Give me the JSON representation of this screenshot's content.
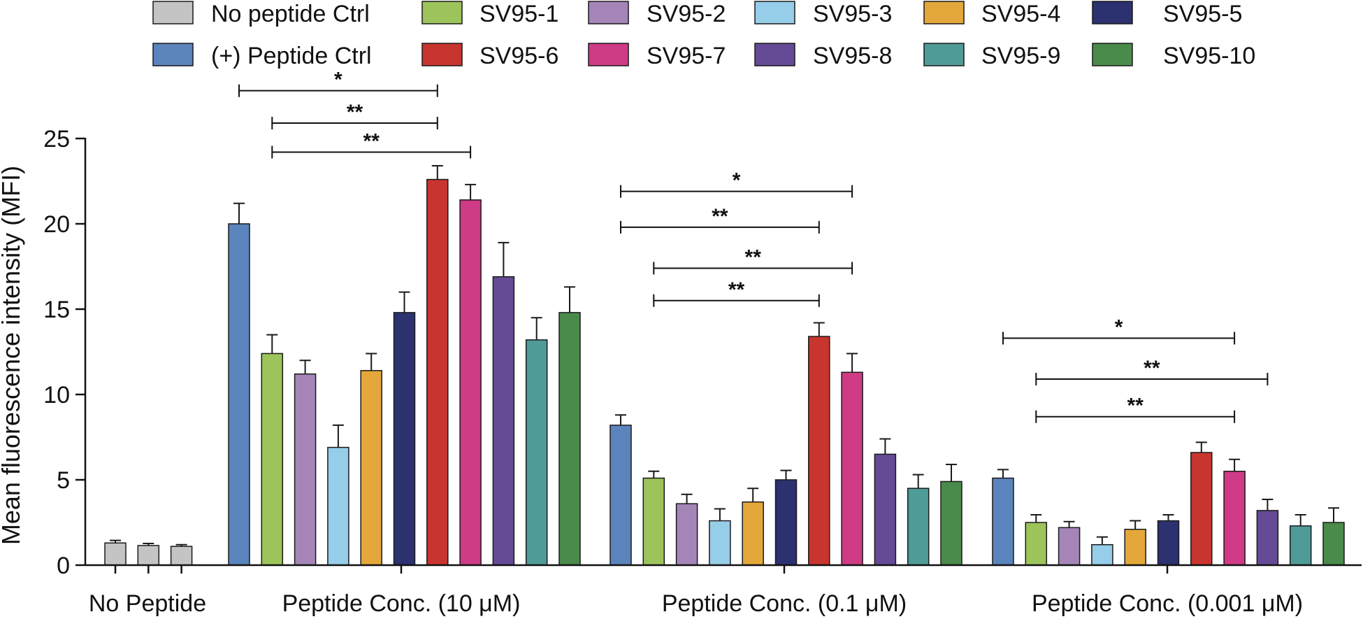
{
  "chart_data": {
    "type": "bar",
    "title": "",
    "xlabel": "",
    "ylabel": "Mean fluorescence intensity (MFI)",
    "ylim": [
      0,
      25
    ],
    "yticks": [
      0,
      5,
      10,
      15,
      20,
      25
    ],
    "legend_position": "top",
    "legend": [
      {
        "label": "No peptide Ctrl",
        "color": "#c4c4c4"
      },
      {
        "label": "SV95-1",
        "color": "#9cc45a"
      },
      {
        "label": "SV95-2",
        "color": "#a585b8"
      },
      {
        "label": "SV95-3",
        "color": "#96cde8"
      },
      {
        "label": "SV95-4",
        "color": "#e3a73b"
      },
      {
        "label": "SV95-5",
        "color": "#2c3170"
      },
      {
        "label": "(+) Peptide Ctrl",
        "color": "#5b84bc"
      },
      {
        "label": "SV95-6",
        "color": "#c8352e"
      },
      {
        "label": "SV95-7",
        "color": "#cf3b86"
      },
      {
        "label": "SV95-8",
        "color": "#654a96"
      },
      {
        "label": "SV95-9",
        "color": "#4f9b98"
      },
      {
        "label": "SV95-10",
        "color": "#4a8a4a"
      }
    ],
    "series_order": [
      "(+) Peptide Ctrl",
      "SV95-1",
      "SV95-2",
      "SV95-3",
      "SV95-4",
      "SV95-5",
      "SV95-6",
      "SV95-7",
      "SV95-8",
      "SV95-9",
      "SV95-10"
    ],
    "groups": [
      {
        "label": "No Peptide",
        "bars": [
          {
            "series": "No peptide Ctrl",
            "value": 1.3,
            "error": 0.15
          },
          {
            "series": "No peptide Ctrl",
            "value": 1.15,
            "error": 0.12
          },
          {
            "series": "No peptide Ctrl",
            "value": 1.1,
            "error": 0.1
          }
        ],
        "significance": []
      },
      {
        "label": "Peptide Conc. (10 μM)",
        "bars": [
          {
            "series": "(+) Peptide Ctrl",
            "value": 20.0,
            "error": 1.2
          },
          {
            "series": "SV95-1",
            "value": 12.4,
            "error": 1.1
          },
          {
            "series": "SV95-2",
            "value": 11.2,
            "error": 0.8
          },
          {
            "series": "SV95-3",
            "value": 6.9,
            "error": 1.3
          },
          {
            "series": "SV95-4",
            "value": 11.4,
            "error": 1.0
          },
          {
            "series": "SV95-5",
            "value": 14.8,
            "error": 1.2
          },
          {
            "series": "SV95-6",
            "value": 22.6,
            "error": 0.8
          },
          {
            "series": "SV95-7",
            "value": 21.4,
            "error": 0.9
          },
          {
            "series": "SV95-8",
            "value": 16.9,
            "error": 2.0
          },
          {
            "series": "SV95-9",
            "value": 13.2,
            "error": 1.3
          },
          {
            "series": "SV95-10",
            "value": 14.8,
            "error": 1.5
          }
        ],
        "significance": [
          {
            "from": 0,
            "to": 6,
            "y": 27.8,
            "label": "*"
          },
          {
            "from": 1,
            "to": 6,
            "y": 25.9,
            "label": "**"
          },
          {
            "from": 1,
            "to": 7,
            "y": 24.2,
            "label": "**"
          }
        ]
      },
      {
        "label": "Peptide Conc. (0.1 μM)",
        "bars": [
          {
            "series": "(+) Peptide Ctrl",
            "value": 8.2,
            "error": 0.6
          },
          {
            "series": "SV95-1",
            "value": 5.1,
            "error": 0.4
          },
          {
            "series": "SV95-2",
            "value": 3.6,
            "error": 0.55
          },
          {
            "series": "SV95-3",
            "value": 2.6,
            "error": 0.7
          },
          {
            "series": "SV95-4",
            "value": 3.7,
            "error": 0.8
          },
          {
            "series": "SV95-5",
            "value": 5.0,
            "error": 0.55
          },
          {
            "series": "SV95-6",
            "value": 13.4,
            "error": 0.8
          },
          {
            "series": "SV95-7",
            "value": 11.3,
            "error": 1.1
          },
          {
            "series": "SV95-8",
            "value": 6.5,
            "error": 0.9
          },
          {
            "series": "SV95-9",
            "value": 4.5,
            "error": 0.8
          },
          {
            "series": "SV95-10",
            "value": 4.9,
            "error": 1.0
          }
        ],
        "significance": [
          {
            "from": 0,
            "to": 7,
            "y": 21.9,
            "label": "*"
          },
          {
            "from": 0,
            "to": 6,
            "y": 19.8,
            "label": "**"
          },
          {
            "from": 1,
            "to": 7,
            "y": 17.4,
            "label": "**"
          },
          {
            "from": 1,
            "to": 6,
            "y": 15.5,
            "label": "**"
          }
        ]
      },
      {
        "label": "Peptide Conc. (0.001 μM)",
        "bars": [
          {
            "series": "(+) Peptide Ctrl",
            "value": 5.1,
            "error": 0.5
          },
          {
            "series": "SV95-1",
            "value": 2.5,
            "error": 0.45
          },
          {
            "series": "SV95-2",
            "value": 2.2,
            "error": 0.35
          },
          {
            "series": "SV95-3",
            "value": 1.2,
            "error": 0.45
          },
          {
            "series": "SV95-4",
            "value": 2.1,
            "error": 0.5
          },
          {
            "series": "SV95-5",
            "value": 2.6,
            "error": 0.35
          },
          {
            "series": "SV95-6",
            "value": 6.6,
            "error": 0.6
          },
          {
            "series": "SV95-7",
            "value": 5.5,
            "error": 0.7
          },
          {
            "series": "SV95-8",
            "value": 3.2,
            "error": 0.65
          },
          {
            "series": "SV95-9",
            "value": 2.3,
            "error": 0.65
          },
          {
            "series": "SV95-10",
            "value": 2.5,
            "error": 0.85
          }
        ],
        "significance": [
          {
            "from": 0,
            "to": 7,
            "y": 13.3,
            "label": "*"
          },
          {
            "from": 1,
            "to": 8,
            "y": 10.9,
            "label": "**"
          },
          {
            "from": 1,
            "to": 7,
            "y": 8.7,
            "label": "**"
          }
        ]
      }
    ]
  }
}
